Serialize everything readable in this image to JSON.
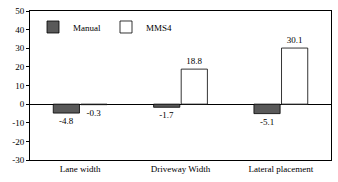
{
  "chart_data": {
    "type": "bar",
    "categories": [
      "Lane width",
      "Driveway Width",
      "Lateral placement"
    ],
    "series": [
      {
        "name": "Manual",
        "color": "#595959",
        "values": [
          -4.8,
          -1.7,
          -5.1
        ]
      },
      {
        "name": "MMS4",
        "color": "#ffffff",
        "values": [
          -0.3,
          18.8,
          30.1
        ]
      }
    ],
    "ylim": [
      -30,
      50
    ],
    "yticks": [
      -30,
      -20,
      -10,
      0,
      10,
      20,
      30,
      40,
      50
    ],
    "grid": false,
    "legend": "top-left",
    "data_labels": true
  }
}
